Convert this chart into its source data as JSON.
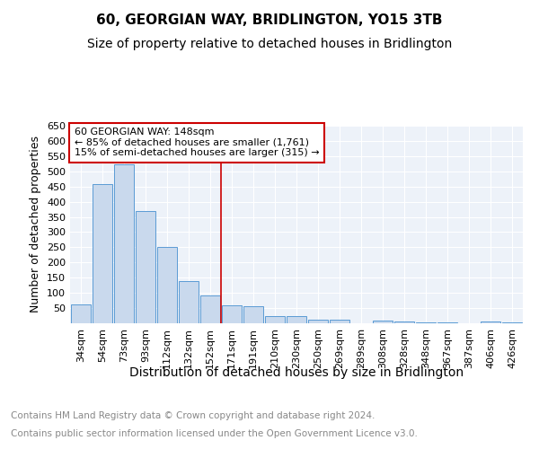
{
  "title": "60, GEORGIAN WAY, BRIDLINGTON, YO15 3TB",
  "subtitle": "Size of property relative to detached houses in Bridlington",
  "xlabel": "Distribution of detached houses by size in Bridlington",
  "ylabel": "Number of detached properties",
  "footer_line1": "Contains HM Land Registry data © Crown copyright and database right 2024.",
  "footer_line2": "Contains public sector information licensed under the Open Government Licence v3.0.",
  "categories": [
    "34sqm",
    "54sqm",
    "73sqm",
    "93sqm",
    "112sqm",
    "132sqm",
    "152sqm",
    "171sqm",
    "191sqm",
    "210sqm",
    "230sqm",
    "250sqm",
    "269sqm",
    "289sqm",
    "308sqm",
    "328sqm",
    "348sqm",
    "367sqm",
    "387sqm",
    "406sqm",
    "426sqm"
  ],
  "values": [
    61,
    457,
    523,
    369,
    250,
    140,
    93,
    60,
    55,
    25,
    25,
    12,
    12,
    0,
    8,
    6,
    3,
    2,
    0,
    5,
    3
  ],
  "bar_color": "#c9d9ed",
  "bar_edge_color": "#5b9bd5",
  "vline_x": 6.5,
  "vline_color": "#cc0000",
  "annotation_box_text": "60 GEORGIAN WAY: 148sqm\n← 85% of detached houses are smaller (1,761)\n15% of semi-detached houses are larger (315) →",
  "annotation_box_color": "#cc0000",
  "ylim": [
    0,
    650
  ],
  "yticks": [
    0,
    50,
    100,
    150,
    200,
    250,
    300,
    350,
    400,
    450,
    500,
    550,
    600,
    650
  ],
  "plot_bg_color": "#edf2f9",
  "grid_color": "#ffffff",
  "title_fontsize": 11,
  "subtitle_fontsize": 10,
  "xlabel_fontsize": 10,
  "ylabel_fontsize": 9,
  "tick_fontsize": 8,
  "footer_fontsize": 7.5
}
